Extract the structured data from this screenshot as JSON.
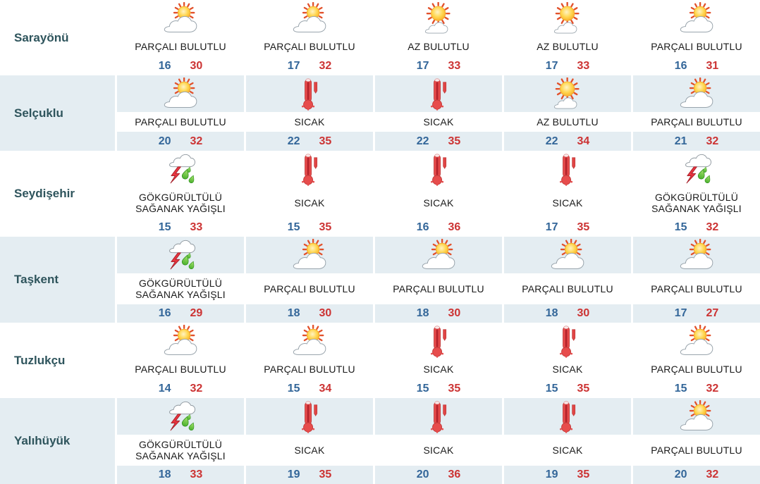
{
  "colors": {
    "row_alt_bg": "#e4edf2",
    "min_temp": "#336699",
    "max_temp": "#cc3333",
    "district_name": "#2e545c",
    "condition_text": "#1b1b1b"
  },
  "icons": {
    "partly-cloudy": "sun-behind-cloud",
    "slightly-cloudy": "sun-with-small-cloud",
    "hot": "red-thermometer",
    "thunderstorm": "cloud-lightning-rain"
  },
  "table": {
    "rows": [
      {
        "district": "Sarayönü",
        "days": [
          {
            "condition": "PARÇALI BULUTLU",
            "icon": "partly-cloudy",
            "min": 16,
            "max": 30
          },
          {
            "condition": "PARÇALI BULUTLU",
            "icon": "partly-cloudy",
            "min": 17,
            "max": 32
          },
          {
            "condition": "AZ BULUTLU",
            "icon": "slightly-cloudy",
            "min": 17,
            "max": 33
          },
          {
            "condition": "AZ BULUTLU",
            "icon": "slightly-cloudy",
            "min": 17,
            "max": 33
          },
          {
            "condition": "PARÇALI BULUTLU",
            "icon": "partly-cloudy",
            "min": 16,
            "max": 31
          }
        ]
      },
      {
        "district": "Selçuklu",
        "days": [
          {
            "condition": "PARÇALI BULUTLU",
            "icon": "partly-cloudy",
            "min": 20,
            "max": 32
          },
          {
            "condition": "SICAK",
            "icon": "hot",
            "min": 22,
            "max": 35
          },
          {
            "condition": "SICAK",
            "icon": "hot",
            "min": 22,
            "max": 35
          },
          {
            "condition": "AZ BULUTLU",
            "icon": "slightly-cloudy",
            "min": 22,
            "max": 34
          },
          {
            "condition": "PARÇALI BULUTLU",
            "icon": "partly-cloudy",
            "min": 21,
            "max": 32
          }
        ]
      },
      {
        "district": "Seydişehir",
        "days": [
          {
            "condition": "GÖKGÜRÜLTÜLÜ SAĞANAK YAĞIŞLI",
            "icon": "thunderstorm",
            "min": 15,
            "max": 33
          },
          {
            "condition": "SICAK",
            "icon": "hot",
            "min": 15,
            "max": 35
          },
          {
            "condition": "SICAK",
            "icon": "hot",
            "min": 16,
            "max": 36
          },
          {
            "condition": "SICAK",
            "icon": "hot",
            "min": 17,
            "max": 35
          },
          {
            "condition": "GÖKGÜRÜLTÜLÜ SAĞANAK YAĞIŞLI",
            "icon": "thunderstorm",
            "min": 15,
            "max": 32
          }
        ]
      },
      {
        "district": "Taşkent",
        "days": [
          {
            "condition": "GÖKGÜRÜLTÜLÜ SAĞANAK YAĞIŞLI",
            "icon": "thunderstorm",
            "min": 16,
            "max": 29
          },
          {
            "condition": "PARÇALI BULUTLU",
            "icon": "partly-cloudy",
            "min": 18,
            "max": 30
          },
          {
            "condition": "PARÇALI BULUTLU",
            "icon": "partly-cloudy",
            "min": 18,
            "max": 30
          },
          {
            "condition": "PARÇALI BULUTLU",
            "icon": "partly-cloudy",
            "min": 18,
            "max": 30
          },
          {
            "condition": "PARÇALI BULUTLU",
            "icon": "partly-cloudy",
            "min": 17,
            "max": 27
          }
        ]
      },
      {
        "district": "Tuzlukçu",
        "days": [
          {
            "condition": "PARÇALI BULUTLU",
            "icon": "partly-cloudy",
            "min": 14,
            "max": 32
          },
          {
            "condition": "PARÇALI BULUTLU",
            "icon": "partly-cloudy",
            "min": 15,
            "max": 34
          },
          {
            "condition": "SICAK",
            "icon": "hot",
            "min": 15,
            "max": 35
          },
          {
            "condition": "SICAK",
            "icon": "hot",
            "min": 15,
            "max": 35
          },
          {
            "condition": "PARÇALI BULUTLU",
            "icon": "partly-cloudy",
            "min": 15,
            "max": 32
          }
        ]
      },
      {
        "district": "Yalıhüyük",
        "days": [
          {
            "condition": "GÖKGÜRÜLTÜLÜ SAĞANAK YAĞIŞLI",
            "icon": "thunderstorm",
            "min": 18,
            "max": 33
          },
          {
            "condition": "SICAK",
            "icon": "hot",
            "min": 19,
            "max": 35
          },
          {
            "condition": "SICAK",
            "icon": "hot",
            "min": 20,
            "max": 36
          },
          {
            "condition": "SICAK",
            "icon": "hot",
            "min": 19,
            "max": 35
          },
          {
            "condition": "PARÇALI BULUTLU",
            "icon": "partly-cloudy",
            "min": 20,
            "max": 32
          }
        ]
      }
    ]
  }
}
